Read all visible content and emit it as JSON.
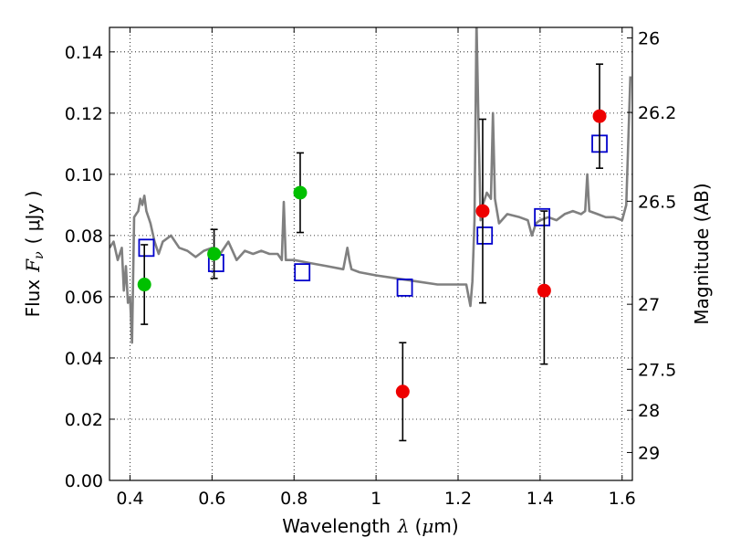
{
  "chart_data": {
    "type": "scatter",
    "xlabel": {
      "text": "Wavelength",
      "symbol": "λ",
      "unit_open": "(",
      "unit_mu": "μ",
      "unit_rest": "m)"
    },
    "ylabel": {
      "text": "Flux",
      "symbol": "F",
      "subscript": "ν",
      "unit": "( μJy )"
    },
    "y2label": "Magnitude (AB)",
    "xlim": [
      0.35,
      1.625
    ],
    "ylim": [
      0.0,
      0.148
    ],
    "grid": true,
    "x_ticks": [
      {
        "v": 0.4,
        "label": "0.4"
      },
      {
        "v": 0.6,
        "label": "0.6"
      },
      {
        "v": 0.8,
        "label": "0.8"
      },
      {
        "v": 1.0,
        "label": "1"
      },
      {
        "v": 1.2,
        "label": "1.2"
      },
      {
        "v": 1.4,
        "label": "1.4"
      },
      {
        "v": 1.6,
        "label": "1.6"
      }
    ],
    "y_ticks": [
      {
        "v": 0.0,
        "label": "0.00"
      },
      {
        "v": 0.02,
        "label": "0.02"
      },
      {
        "v": 0.04,
        "label": "0.04"
      },
      {
        "v": 0.06,
        "label": "0.06"
      },
      {
        "v": 0.08,
        "label": "0.08"
      },
      {
        "v": 0.1,
        "label": "0.10"
      },
      {
        "v": 0.12,
        "label": "0.12"
      },
      {
        "v": 0.14,
        "label": "0.14"
      }
    ],
    "y2_ticks": [
      {
        "mag": 26,
        "label": "26"
      },
      {
        "mag": 26.2,
        "label": "26.2"
      },
      {
        "mag": 26.5,
        "label": "26.5"
      },
      {
        "mag": 27,
        "label": "27"
      },
      {
        "mag": 27.5,
        "label": "27.5"
      },
      {
        "mag": 28,
        "label": "28"
      },
      {
        "mag": 29,
        "label": "29"
      }
    ],
    "colors": {
      "model": "#808080",
      "model_points": "#0000cc",
      "green": "#00c000",
      "red": "#ee0000",
      "errorbar": "#000000"
    },
    "series": [
      {
        "kind": "line",
        "x": [
          0.35,
          0.36,
          0.37,
          0.38,
          0.385,
          0.39,
          0.395,
          0.4,
          0.405,
          0.41,
          0.415,
          0.42,
          0.425,
          0.43,
          0.435,
          0.44,
          0.45,
          0.46,
          0.47,
          0.48,
          0.5,
          0.52,
          0.54,
          0.56,
          0.58,
          0.6,
          0.62,
          0.64,
          0.66,
          0.68,
          0.7,
          0.72,
          0.74,
          0.76,
          0.77,
          0.775,
          0.78,
          0.8,
          0.84,
          0.88,
          0.92,
          0.93,
          0.935,
          0.94,
          0.96,
          1.0,
          1.05,
          1.1,
          1.15,
          1.2,
          1.22,
          1.23,
          1.235,
          1.24,
          1.245,
          1.25,
          1.255,
          1.26,
          1.27,
          1.28,
          1.285,
          1.29,
          1.3,
          1.32,
          1.35,
          1.37,
          1.38,
          1.39,
          1.4,
          1.42,
          1.44,
          1.46,
          1.48,
          1.5,
          1.51,
          1.515,
          1.52,
          1.54,
          1.56,
          1.58,
          1.6,
          1.61,
          1.62
        ],
        "y": [
          0.076,
          0.078,
          0.072,
          0.076,
          0.062,
          0.07,
          0.058,
          0.06,
          0.045,
          0.086,
          0.087,
          0.088,
          0.092,
          0.09,
          0.093,
          0.088,
          0.084,
          0.078,
          0.074,
          0.078,
          0.08,
          0.076,
          0.075,
          0.073,
          0.075,
          0.076,
          0.074,
          0.078,
          0.072,
          0.075,
          0.074,
          0.075,
          0.074,
          0.074,
          0.072,
          0.091,
          0.072,
          0.072,
          0.071,
          0.07,
          0.069,
          0.076,
          0.072,
          0.069,
          0.068,
          0.067,
          0.066,
          0.065,
          0.064,
          0.064,
          0.064,
          0.057,
          0.065,
          0.085,
          0.15,
          0.115,
          0.085,
          0.09,
          0.094,
          0.092,
          0.12,
          0.092,
          0.084,
          0.087,
          0.086,
          0.085,
          0.08,
          0.084,
          0.085,
          0.086,
          0.085,
          0.087,
          0.088,
          0.087,
          0.088,
          0.1,
          0.088,
          0.087,
          0.086,
          0.086,
          0.085,
          0.09,
          0.132
        ]
      },
      {
        "kind": "model_points",
        "x": [
          0.44,
          0.61,
          0.82,
          1.07,
          1.265,
          1.405,
          1.545
        ],
        "y": [
          0.076,
          0.071,
          0.068,
          0.063,
          0.08,
          0.086,
          0.11
        ]
      },
      {
        "kind": "observed",
        "color": "green",
        "x": [
          0.435,
          0.605,
          0.815
        ],
        "y": [
          0.064,
          0.074,
          0.094
        ],
        "err_low": [
          0.051,
          0.066,
          0.081
        ],
        "err_high": [
          0.077,
          0.082,
          0.107
        ]
      },
      {
        "kind": "observed",
        "color": "red",
        "x": [
          1.065,
          1.26,
          1.41,
          1.545
        ],
        "y": [
          0.029,
          0.088,
          0.062,
          0.119
        ],
        "err_low": [
          0.013,
          0.058,
          0.038,
          0.102
        ],
        "err_high": [
          0.045,
          0.118,
          0.088,
          0.136
        ]
      }
    ]
  }
}
